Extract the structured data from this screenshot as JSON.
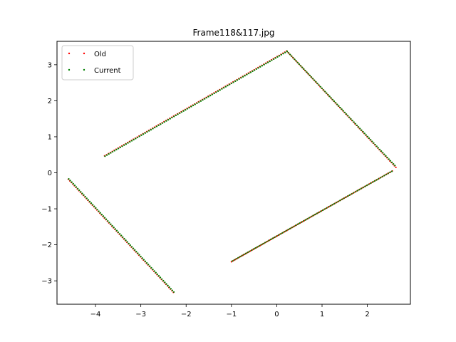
{
  "chart_data": {
    "type": "scatter",
    "title": "Frame118&117.jpg",
    "xlabel": "",
    "ylabel": "",
    "xlim": [
      -4.85,
      2.95
    ],
    "ylim": [
      -3.65,
      3.65
    ],
    "xticks": [
      -4,
      -3,
      -2,
      -1,
      0,
      1,
      2
    ],
    "yticks": [
      -3,
      -2,
      -1,
      0,
      1,
      2,
      3
    ],
    "grid": false,
    "legend_position": "upper-left",
    "series": [
      {
        "name": "Old",
        "color": "#ff0000",
        "segments": [
          {
            "from": [
              -3.8,
              0.47
            ],
            "to": [
              0.22,
              3.38
            ]
          },
          {
            "from": [
              0.22,
              3.38
            ],
            "to": [
              2.63,
              0.15
            ]
          },
          {
            "from": [
              2.55,
              0.05
            ],
            "to": [
              -1.0,
              -2.47
            ]
          },
          {
            "from": [
              -4.6,
              -0.18
            ],
            "to": [
              -2.28,
              -3.32
            ]
          }
        ]
      },
      {
        "name": "Current",
        "color": "#008000",
        "segments": [
          {
            "from": [
              -3.79,
              0.46
            ],
            "to": [
              0.23,
              3.37
            ]
          },
          {
            "from": [
              0.23,
              3.37
            ],
            "to": [
              2.61,
              0.2
            ]
          },
          {
            "from": [
              2.54,
              0.04
            ],
            "to": [
              -0.98,
              -2.45
            ]
          },
          {
            "from": [
              -4.59,
              -0.17
            ],
            "to": [
              -2.27,
              -3.31
            ]
          }
        ]
      }
    ]
  }
}
